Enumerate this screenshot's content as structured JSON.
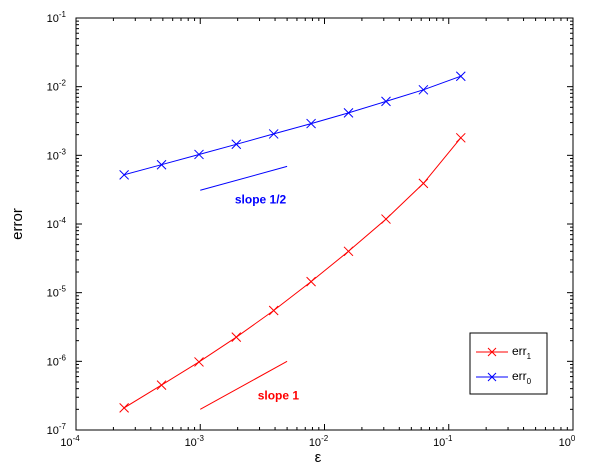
{
  "chart_data": {
    "type": "line",
    "title": "",
    "xlabel": "ε",
    "ylabel": "error",
    "xscale": "log",
    "yscale": "log",
    "xlim": [
      0.0001,
      1
    ],
    "ylim": [
      1e-07,
      0.1
    ],
    "x_ticks": [
      {
        "base": "10",
        "exp": "-4"
      },
      {
        "base": "10",
        "exp": "-3"
      },
      {
        "base": "10",
        "exp": "-2"
      },
      {
        "base": "10",
        "exp": "-1"
      },
      {
        "base": "10",
        "exp": "0"
      }
    ],
    "y_ticks": [
      {
        "base": "10",
        "exp": "-7"
      },
      {
        "base": "10",
        "exp": "-6"
      },
      {
        "base": "10",
        "exp": "-5"
      },
      {
        "base": "10",
        "exp": "-4"
      },
      {
        "base": "10",
        "exp": "-3"
      },
      {
        "base": "10",
        "exp": "-2"
      },
      {
        "base": "10",
        "exp": "-1"
      }
    ],
    "grid": false,
    "legend_position": "bottom-right",
    "series": [
      {
        "label_main": "err",
        "label_sub": "1",
        "color": "#ff0000",
        "marker": "x",
        "x": [
          0.000244,
          0.000488,
          0.000977,
          0.00195,
          0.0039,
          0.0078,
          0.0156,
          0.03125,
          0.0625,
          0.125
        ],
        "y": [
          2.1e-07,
          4.5e-07,
          9.8e-07,
          2.25e-06,
          5.5e-06,
          1.45e-05,
          4e-05,
          0.000118,
          0.00039,
          0.0018
        ]
      },
      {
        "label_main": "err",
        "label_sub": "0",
        "color": "#0000ff",
        "marker": "x",
        "x": [
          0.000244,
          0.000488,
          0.000977,
          0.00195,
          0.0039,
          0.0078,
          0.0156,
          0.03125,
          0.0625,
          0.125
        ],
        "y": [
          0.00052,
          0.00073,
          0.00103,
          0.00145,
          0.00205,
          0.0029,
          0.00415,
          0.0061,
          0.009,
          0.0142
        ]
      }
    ],
    "reference_lines": [
      {
        "text": "slope 1/2",
        "color": "#0000ff",
        "x": [
          0.001,
          0.005
        ],
        "y": [
          0.00031,
          0.00069
        ],
        "label_x": 0.0019,
        "label_y": 0.0002
      },
      {
        "text": "slope 1",
        "color": "#ff0000",
        "x": [
          0.001,
          0.005
        ],
        "y": [
          2e-07,
          1e-06
        ],
        "label_x": 0.0029,
        "label_y": 2.8e-07
      }
    ]
  }
}
